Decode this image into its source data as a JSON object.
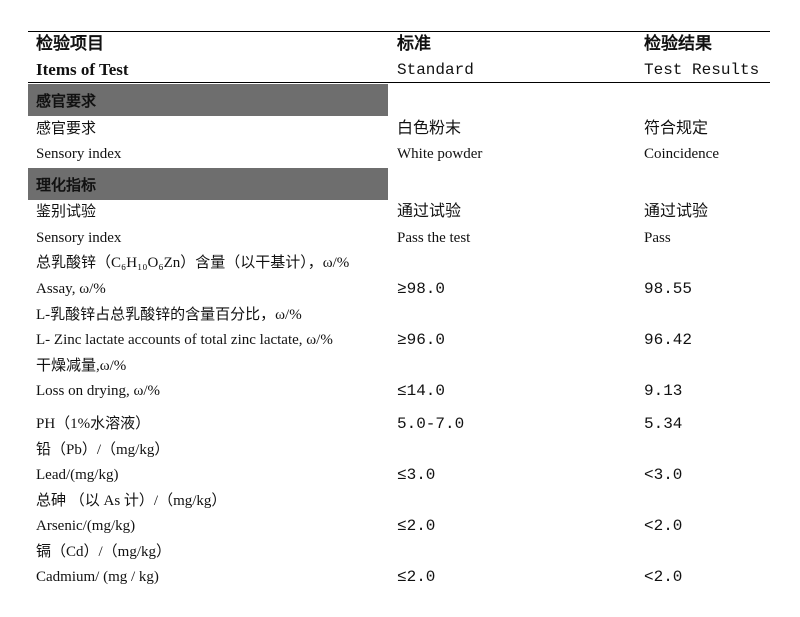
{
  "header": {
    "col1_cn": "检验项目",
    "col2_cn": "标准",
    "col3_cn": "检验结果",
    "col1_en": "Items of Test",
    "col2_en": "Standard",
    "col3_en": "Test Results"
  },
  "sections": [
    {
      "title": "感官要求"
    },
    {
      "title": "理化指标"
    }
  ],
  "rows": [
    {
      "item": "感官要求",
      "standard": "白色粉末",
      "result": "符合规定"
    },
    {
      "item": "Sensory index",
      "standard": "White powder",
      "result": "Coincidence"
    },
    {
      "item": "鉴别试验",
      "standard": "通过试验",
      "result": "通过试验"
    },
    {
      "item": "Sensory index",
      "standard": "Pass the test",
      "result": "Pass"
    },
    {
      "item": "总乳酸锌（C₆H₁₀O₆Zn）含量（以干基计），ω/%",
      "standard": "",
      "result": ""
    },
    {
      "item": "Assay, ω/%",
      "standard": "≥98.0",
      "result": "98.55"
    },
    {
      "item": "L-乳酸锌占总乳酸锌的含量百分比，ω/%",
      "standard": "",
      "result": ""
    },
    {
      "item": "L- Zinc lactate accounts of total zinc lactate, ω/%",
      "standard": "≥96.0",
      "result": "96.42"
    },
    {
      "item": "干燥减量,ω/%",
      "standard": "",
      "result": ""
    },
    {
      "item": "Loss on drying, ω/%",
      "standard": "≤14.0",
      "result": "9.13"
    },
    {
      "item": "PH（1%水溶液）",
      "standard": "5.0-7.0",
      "result": "5.34"
    },
    {
      "item": "铅（Pb）/（mg/kg）",
      "standard": "",
      "result": ""
    },
    {
      "item": "Lead/(mg/kg)",
      "standard": "≤3.0",
      "result": "<3.0"
    },
    {
      "item": "总砷 （以 As 计）/（mg/kg）",
      "standard": "",
      "result": ""
    },
    {
      "item": "Arsenic/(mg/kg)",
      "standard": "≤2.0",
      "result": "<2.0"
    },
    {
      "item": "镉（Cd）/（mg/kg）",
      "standard": "",
      "result": ""
    },
    {
      "item": "Cadmium/ (mg / kg)",
      "standard": "≤2.0",
      "result": "<2.0"
    }
  ]
}
